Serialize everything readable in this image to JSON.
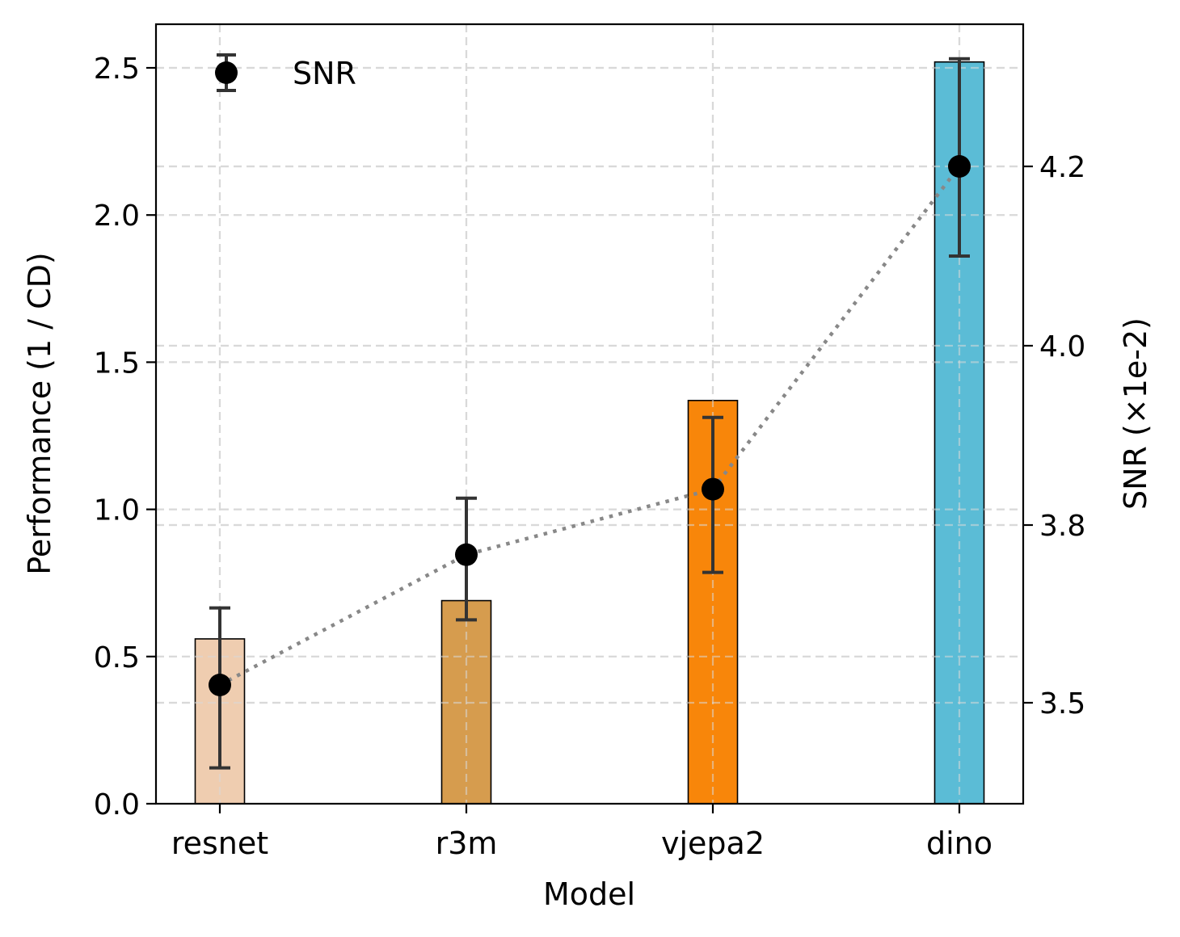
{
  "chart_data": {
    "type": "bar",
    "title": "",
    "xlabel": "Model",
    "ylabel": "Performance (1 / CD)",
    "y2label": "SNR (×1e-2)",
    "categories": [
      "resnet",
      "r3m",
      "vjepa2",
      "dino"
    ],
    "grid": true,
    "ylim": [
      0,
      2.65
    ],
    "yticks": [
      0.0,
      0.5,
      1.0,
      1.5,
      2.0,
      2.5
    ],
    "ytick_labels": [
      "0.0",
      "0.5",
      "1.0",
      "1.5",
      "2.0",
      "2.5"
    ],
    "y2ticks": [
      3.5,
      3.8,
      4.0,
      4.2
    ],
    "y2tick_labels": [
      "3.5",
      "3.8",
      "4.0",
      "4.2"
    ],
    "series": [
      {
        "name": "Performance",
        "kind": "bar",
        "axis": "left",
        "values": [
          0.56,
          0.69,
          1.37,
          2.52
        ],
        "colors": [
          "#efcdb0",
          "#d69c4e",
          "#f8860a",
          "#5bbcd6"
        ]
      },
      {
        "name": "SNR",
        "kind": "errorbar",
        "axis": "right",
        "values": [
          3.53,
          3.75,
          3.84,
          4.2
        ],
        "err_low": [
          3.39,
          3.64,
          3.72,
          4.1
        ],
        "err_high": [
          3.66,
          3.83,
          3.92,
          4.32
        ],
        "line_style": "dotted",
        "line_color": "#888888",
        "marker_color": "#000000",
        "errorbar_color": "#333333"
      }
    ],
    "legend": {
      "position": "top-left",
      "entries": [
        {
          "label": "SNR",
          "marker": "errorbar-point"
        }
      ]
    }
  }
}
